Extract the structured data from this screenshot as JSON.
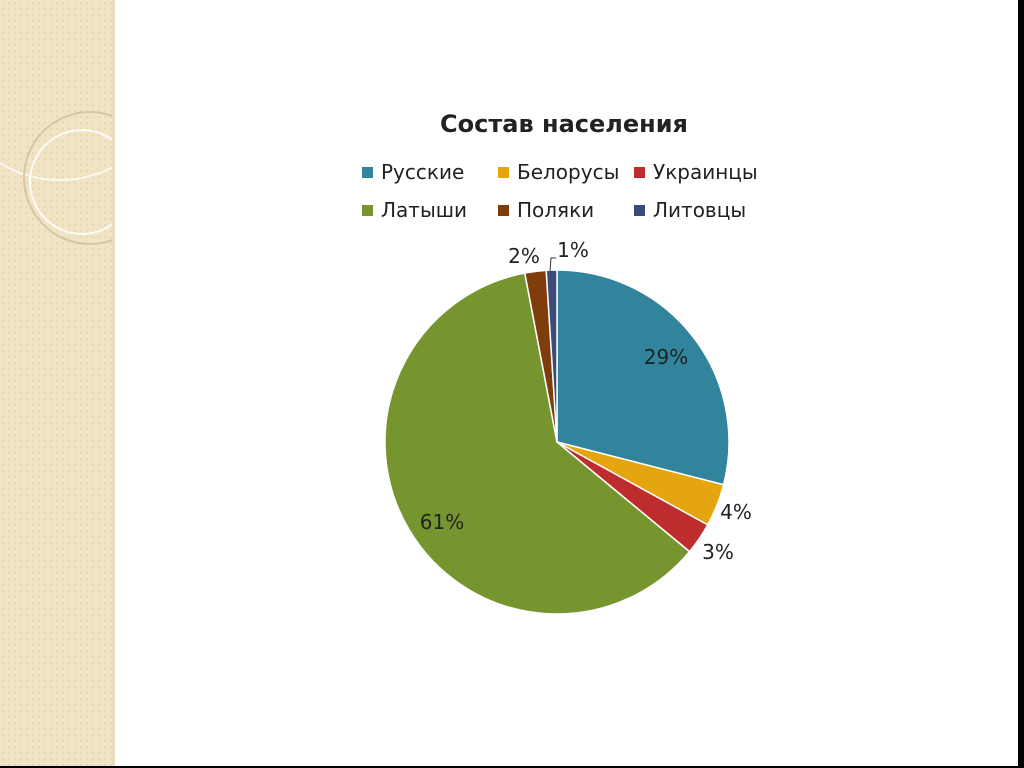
{
  "slide": {
    "side_panel_color": "#f1e4c4"
  },
  "chart_data": {
    "type": "pie",
    "title": "Состав населения",
    "legend_placement": "top",
    "slices": [
      {
        "name": "Русские",
        "value": 29,
        "label": "29%",
        "color": "#31849b"
      },
      {
        "name": "Белорусы",
        "value": 4,
        "label": "4%",
        "color": "#e5a50f"
      },
      {
        "name": "Украинцы",
        "value": 3,
        "label": "3%",
        "color": "#be2d2d"
      },
      {
        "name": "Латыши",
        "value": 61,
        "label": "61%",
        "color": "#77952e"
      },
      {
        "name": "Поляки",
        "value": 2,
        "label": "2%",
        "color": "#7f3d0b"
      },
      {
        "name": "Литовцы",
        "value": 1,
        "label": "1%",
        "color": "#3b4a79"
      }
    ]
  }
}
